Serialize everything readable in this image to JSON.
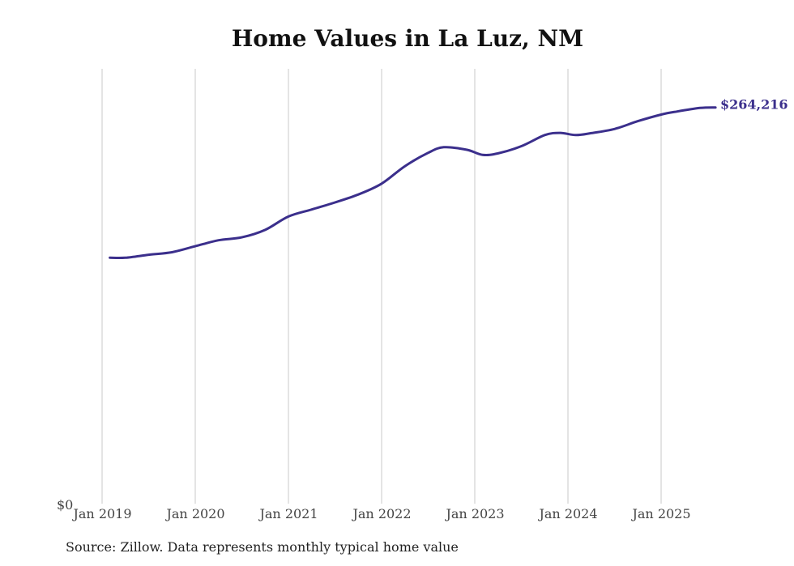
{
  "chart_data": {
    "type": "line",
    "title": "Home Values in La Luz, NM",
    "xlabel": "",
    "ylabel": "",
    "x_ticks": [
      "Jan 2019",
      "Jan 2020",
      "Jan 2021",
      "Jan 2022",
      "Jan 2023",
      "Jan 2024",
      "Jan 2025"
    ],
    "y_ticks": [
      "$0"
    ],
    "ylim": [
      0,
      290000
    ],
    "grid": "vertical",
    "colors": {
      "line": "#3b2f8c",
      "grid": "#c8c8c8"
    },
    "end_label": "$264,216",
    "series": [
      {
        "values": [
          {
            "x": "2019-02",
            "y": 164000
          },
          {
            "x": "2019-04",
            "y": 164000
          },
          {
            "x": "2019-07",
            "y": 166000
          },
          {
            "x": "2019-10",
            "y": 167700
          },
          {
            "x": "2020-01",
            "y": 171700
          },
          {
            "x": "2020-04",
            "y": 175700
          },
          {
            "x": "2020-07",
            "y": 177600
          },
          {
            "x": "2020-10",
            "y": 182600
          },
          {
            "x": "2021-01",
            "y": 191500
          },
          {
            "x": "2021-04",
            "y": 196200
          },
          {
            "x": "2021-07",
            "y": 200900
          },
          {
            "x": "2021-10",
            "y": 206200
          },
          {
            "x": "2022-01",
            "y": 213400
          },
          {
            "x": "2022-04",
            "y": 225100
          },
          {
            "x": "2022-07",
            "y": 234000
          },
          {
            "x": "2022-09",
            "y": 237700
          },
          {
            "x": "2022-12",
            "y": 236000
          },
          {
            "x": "2023-02",
            "y": 232600
          },
          {
            "x": "2023-04",
            "y": 233600
          },
          {
            "x": "2023-07",
            "y": 238400
          },
          {
            "x": "2023-10",
            "y": 245800
          },
          {
            "x": "2023-12",
            "y": 247300
          },
          {
            "x": "2024-02",
            "y": 245800
          },
          {
            "x": "2024-04",
            "y": 247100
          },
          {
            "x": "2024-07",
            "y": 249900
          },
          {
            "x": "2024-10",
            "y": 255100
          },
          {
            "x": "2025-01",
            "y": 259500
          },
          {
            "x": "2025-03",
            "y": 261500
          },
          {
            "x": "2025-06",
            "y": 263900
          },
          {
            "x": "2025-08",
            "y": 264216
          }
        ]
      }
    ]
  },
  "source_text": "Source: Zillow. Data represents monthly typical home value"
}
